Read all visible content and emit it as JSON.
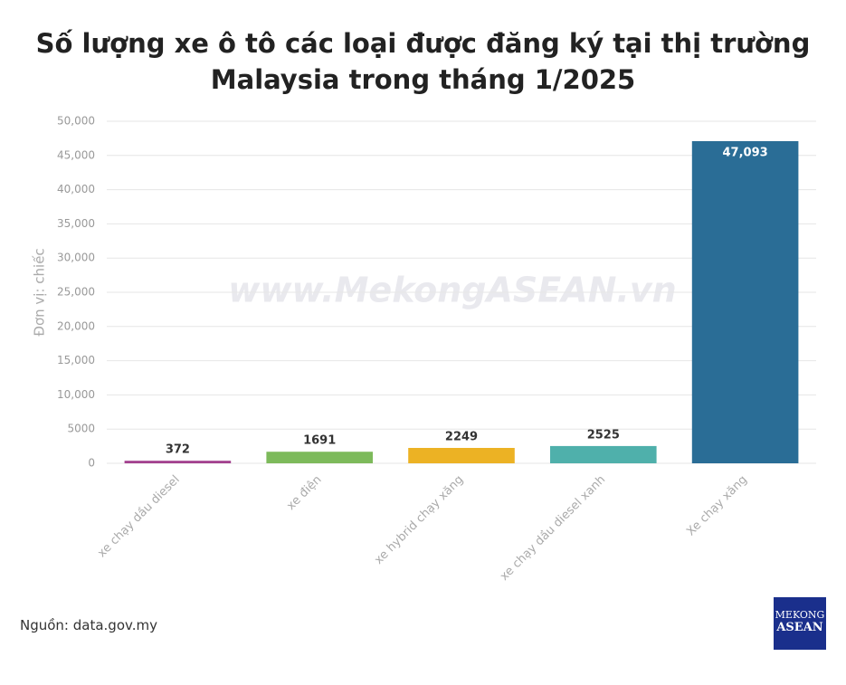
{
  "chart_data": {
    "type": "bar",
    "title": "Số lượng xe ô tô các loại được đăng ký tại thị trường Malaysia trong tháng 1/2025",
    "y_label": "Đơn vị: chiếc",
    "watermark": "www.MekongASEAN.vn",
    "categories": [
      "xe chạy dầu diesel",
      "xe điện",
      "xe hybrid chạy xăng",
      "xe chạy dầu diesel xanh",
      "Xe chạy xăng"
    ],
    "values": [
      372,
      1691,
      2249,
      2525,
      47093
    ],
    "value_labels": [
      "372",
      "1691",
      "2249",
      "2525",
      "47,093"
    ],
    "colors": [
      "#a3418f",
      "#7dba5b",
      "#ecb224",
      "#4fb0ab",
      "#2a6d96"
    ],
    "ylim": [
      0,
      50000
    ],
    "yticks": [
      0,
      5000,
      {
        "value": 10000,
        "label": "10,000"
      },
      {
        "value": 15000,
        "label": "15,000"
      },
      {
        "value": 20000,
        "label": "20,000"
      },
      {
        "value": 25000,
        "label": "25,000"
      },
      {
        "value": 30000,
        "label": "30,000"
      },
      {
        "value": 35000,
        "label": "35,000"
      },
      {
        "value": 40000,
        "label": "40,000"
      },
      {
        "value": 45000,
        "label": "45,000"
      },
      {
        "value": 50000,
        "label": "50,000"
      }
    ],
    "grid": true
  },
  "source": "Nguồn: data.gov.my",
  "logo": {
    "line1": "MEKONG",
    "line2": "ASEAN"
  }
}
